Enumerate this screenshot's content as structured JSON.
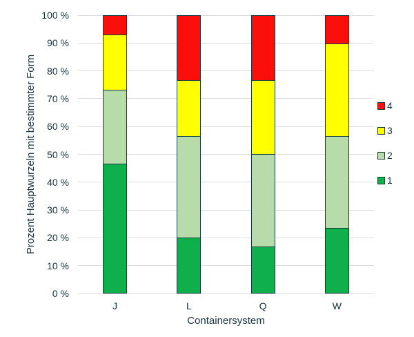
{
  "chart_data": {
    "type": "bar",
    "stacked": true,
    "title": "",
    "xlabel": "Containersystem",
    "ylabel": "Prozent Hauptwurzeln mit bestimmter Form",
    "categories": [
      "J",
      "L",
      "Q",
      "W"
    ],
    "series": [
      {
        "name": "1",
        "color": "#0FB04C",
        "values": [
          46.7,
          20.0,
          16.7,
          23.3
        ]
      },
      {
        "name": "2",
        "color": "#B7DBA9",
        "values": [
          26.7,
          36.7,
          33.3,
          33.3
        ]
      },
      {
        "name": "3",
        "color": "#FFFF00",
        "values": [
          20.0,
          20.0,
          26.7,
          33.3
        ]
      },
      {
        "name": "4",
        "color": "#FA0F0A",
        "values": [
          6.7,
          23.3,
          23.3,
          10.0
        ]
      }
    ],
    "ylim": [
      0,
      100
    ],
    "ytick_step": 10,
    "yticks": [
      "0 %",
      "10 %",
      "20 %",
      "30 %",
      "40 %",
      "50 %",
      "60 %",
      "70 %",
      "80 %",
      "90 %",
      "100 %"
    ],
    "grid": true,
    "legend_position": "right",
    "legend_entries_top_to_bottom": [
      "4",
      "3",
      "2",
      "1"
    ]
  },
  "styles": {
    "background": "#FFFFFF",
    "bar_border_color": "#123B44",
    "gridline_color": "#D8DCDB",
    "text_color": "#16333E"
  }
}
